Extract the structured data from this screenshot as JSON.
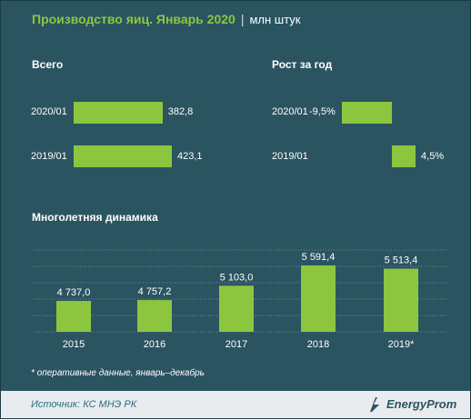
{
  "header": {
    "title": "Производство яиц. Январь 2020",
    "separator": "|",
    "unit": "млн штук"
  },
  "colors": {
    "background": "#2b5461",
    "bar": "#8cc63f",
    "title": "#8cc63f",
    "footer": "#e8ecee"
  },
  "chart_data": [
    {
      "type": "bar",
      "orientation": "horizontal",
      "title": "Всего",
      "categories": [
        "2020/01",
        "2019/01"
      ],
      "values": [
        382.8,
        423.1
      ],
      "labels": [
        "382,8",
        "423,1"
      ],
      "xlim": [
        0,
        423.1
      ]
    },
    {
      "type": "bar",
      "orientation": "horizontal",
      "title": "Рост за год",
      "categories": [
        "2020/01",
        "2019/01"
      ],
      "values": [
        -9.5,
        4.5
      ],
      "labels": [
        "-9,5%",
        "4,5%"
      ],
      "xlim": [
        -9.5,
        4.5
      ]
    },
    {
      "type": "bar",
      "orientation": "vertical",
      "title": "Многолетняя динамика",
      "categories": [
        "2015",
        "2016",
        "2017",
        "2018",
        "2019*"
      ],
      "values": [
        4737.0,
        4757.2,
        5103.0,
        5591.4,
        5513.4
      ],
      "labels": [
        "4 737,0",
        "4 757,2",
        "5 103,0",
        "5 591,4",
        "5 513,4"
      ],
      "grid": true
    }
  ],
  "footnote": "* оперативные данные, январь–декабрь",
  "footer": {
    "source": "Источник: КС МНЭ РК",
    "logo": "EnergyProm"
  }
}
